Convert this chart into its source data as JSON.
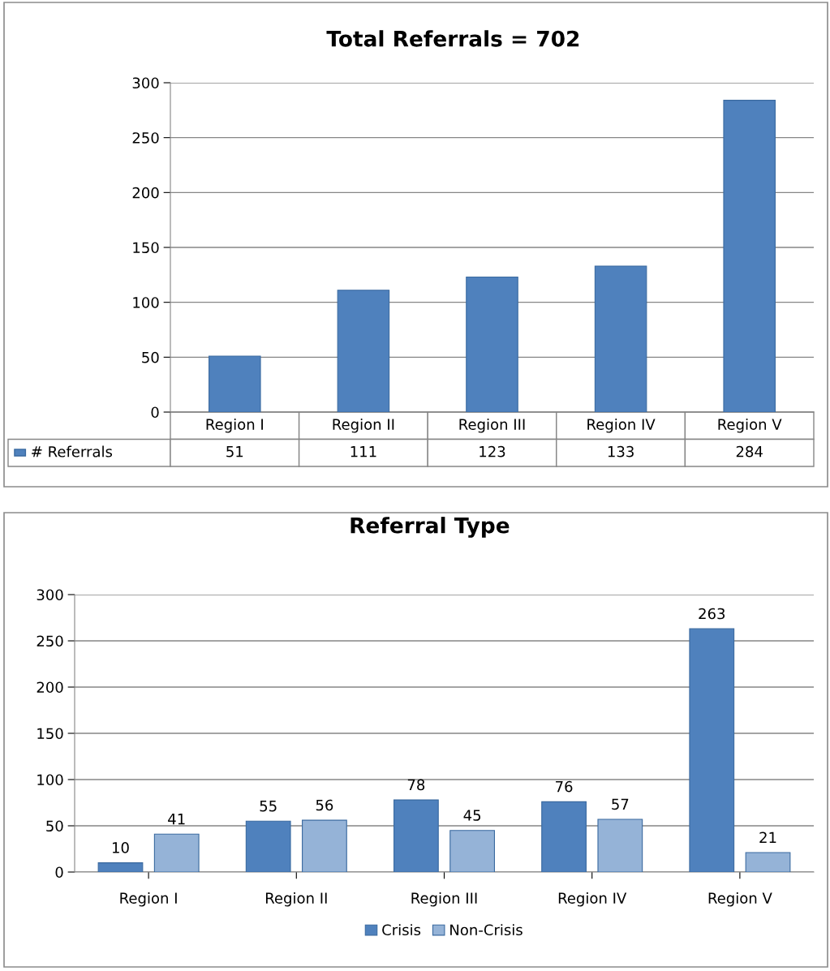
{
  "chart_data": [
    {
      "type": "bar",
      "title": "Total Referrals = 702",
      "categories": [
        "Region I",
        "Region II",
        "Region III",
        "Region IV",
        "Region V"
      ],
      "series": [
        {
          "name": "# Referrals",
          "color": "#4f81bd",
          "values": [
            51,
            111,
            123,
            133,
            284
          ]
        }
      ],
      "ylim": [
        0,
        300
      ],
      "yticks": [
        0,
        50,
        100,
        150,
        200,
        250,
        300
      ],
      "grid": "y",
      "data_labels": true
    },
    {
      "type": "bar",
      "title": "Referral Type",
      "categories": [
        "Region I",
        "Region II",
        "Region III",
        "Region IV",
        "Region V"
      ],
      "series": [
        {
          "name": "Crisis",
          "color": "#4f81bd",
          "values": [
            10,
            55,
            78,
            76,
            263
          ]
        },
        {
          "name": "Non-Crisis",
          "color": "#95b3d7",
          "values": [
            41,
            56,
            45,
            57,
            21
          ]
        }
      ],
      "ylim": [
        0,
        300
      ],
      "yticks": [
        0,
        50,
        100,
        150,
        200,
        250,
        300
      ],
      "grid": "y",
      "data_labels": true,
      "legend": "bottom"
    }
  ]
}
